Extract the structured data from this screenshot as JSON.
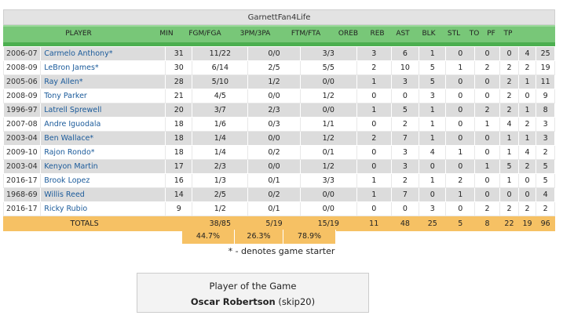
{
  "team_header": "GarnettFan4Life",
  "columns": [
    "PLAYER",
    "MIN",
    "FGM/FGA",
    "3PM/3PA",
    "FTM/FTA",
    "OREB",
    "REB",
    "AST",
    "BLK",
    "STL",
    "TO",
    "PF",
    "TP"
  ],
  "rows": [
    [
      "2006-07",
      "Carmelo Anthony*",
      "31",
      "11/22",
      "0/0",
      "3/3",
      "3",
      "6",
      "1",
      "0",
      "0",
      "0",
      "4",
      "25"
    ],
    [
      "2008-09",
      "LeBron James*",
      "30",
      "6/14",
      "2/5",
      "5/5",
      "2",
      "10",
      "5",
      "1",
      "2",
      "2",
      "2",
      "19"
    ],
    [
      "2005-06",
      "Ray Allen*",
      "28",
      "5/10",
      "1/2",
      "0/0",
      "1",
      "3",
      "5",
      "0",
      "0",
      "2",
      "1",
      "11"
    ],
    [
      "2008-09",
      "Tony Parker",
      "21",
      "4/5",
      "0/0",
      "1/2",
      "0",
      "0",
      "3",
      "0",
      "0",
      "2",
      "0",
      "9"
    ],
    [
      "1996-97",
      "Latrell Sprewell",
      "20",
      "3/7",
      "2/3",
      "0/0",
      "1",
      "5",
      "1",
      "0",
      "2",
      "2",
      "1",
      "8"
    ],
    [
      "2007-08",
      "Andre Iguodala",
      "18",
      "1/6",
      "0/3",
      "1/1",
      "0",
      "2",
      "1",
      "0",
      "1",
      "4",
      "2",
      "3"
    ],
    [
      "2003-04",
      "Ben Wallace*",
      "18",
      "1/4",
      "0/0",
      "1/2",
      "2",
      "7",
      "1",
      "0",
      "0",
      "1",
      "1",
      "3"
    ],
    [
      "2009-10",
      "Rajon Rondo*",
      "18",
      "1/4",
      "0/2",
      "0/1",
      "0",
      "3",
      "4",
      "1",
      "0",
      "1",
      "4",
      "2"
    ],
    [
      "2003-04",
      "Kenyon Martin",
      "17",
      "2/3",
      "0/0",
      "1/2",
      "0",
      "3",
      "0",
      "0",
      "1",
      "5",
      "2",
      "5"
    ],
    [
      "2016-17",
      "Brook Lopez",
      "16",
      "1/3",
      "0/1",
      "3/3",
      "1",
      "2",
      "1",
      "2",
      "0",
      "1",
      "0",
      "5"
    ],
    [
      "1968-69",
      "Willis Reed",
      "14",
      "2/5",
      "0/2",
      "0/0",
      "1",
      "7",
      "0",
      "1",
      "0",
      "0",
      "0",
      "4"
    ],
    [
      "2016-17",
      "Ricky Rubio",
      "9",
      "1/2",
      "0/1",
      "0/0",
      "0",
      "0",
      "3",
      "0",
      "2",
      "2",
      "2",
      "2"
    ]
  ],
  "totals": {
    "label": "TOTALS",
    "values": [
      "",
      "38/85",
      "5/19",
      "15/19",
      "11",
      "48",
      "25",
      "5",
      "8",
      "22",
      "19",
      "96"
    ]
  },
  "percentages": {
    "fg": "44.7%",
    "three": "26.3%",
    "ft": "78.9%"
  },
  "starter_note": "* - denotes game starter",
  "player_of_game": {
    "title": "Player of the Game",
    "name": "Oscar Robertson",
    "user": "(skip20)"
  },
  "colors": {
    "header_green": "#78c778",
    "stripe_green": "#4caf50",
    "totals_orange": "#f6c164",
    "link_blue": "#1a5a9a"
  }
}
